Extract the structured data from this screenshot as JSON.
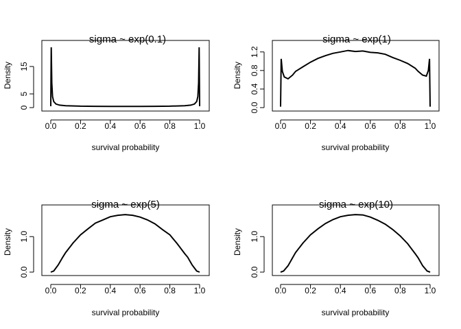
{
  "chart_data": [
    {
      "type": "line",
      "title": "sigma ~ exp(0.1)",
      "xlabel": "survival probability",
      "ylabel": "Density",
      "xlim": [
        0,
        1
      ],
      "ylim": [
        0,
        22
      ],
      "xticks": [
        "0.0",
        "0.2",
        "0.4",
        "0.6",
        "0.8",
        "1.0"
      ],
      "yticks": [
        "0",
        "5",
        "15"
      ],
      "ytick_values": [
        0,
        5,
        15
      ],
      "series": [
        {
          "x": [
            0.0,
            0.003,
            0.007,
            0.012,
            0.02,
            0.035,
            0.06,
            0.1,
            0.2,
            0.3,
            0.4,
            0.5,
            0.6,
            0.7,
            0.8,
            0.9,
            0.94,
            0.965,
            0.98,
            0.988,
            0.993,
            0.997,
            1.0
          ],
          "y": [
            0.5,
            22,
            9,
            4,
            2.2,
            1.3,
            0.9,
            0.7,
            0.52,
            0.47,
            0.45,
            0.44,
            0.45,
            0.47,
            0.52,
            0.7,
            0.9,
            1.3,
            2.2,
            4,
            9,
            22,
            0.5
          ]
        }
      ]
    },
    {
      "type": "line",
      "title": "sigma ~ exp(1)",
      "xlabel": "survival probability",
      "ylabel": "Density",
      "xlim": [
        0,
        1
      ],
      "ylim": [
        0,
        1.3
      ],
      "xticks": [
        "0.0",
        "0.2",
        "0.4",
        "0.6",
        "0.8",
        "1.0"
      ],
      "yticks": [
        "0.0",
        "0.4",
        "0.8",
        "1.2"
      ],
      "ytick_values": [
        0,
        0.4,
        0.8,
        1.2
      ],
      "series": [
        {
          "x": [
            0.0,
            0.004,
            0.012,
            0.025,
            0.05,
            0.08,
            0.1,
            0.15,
            0.2,
            0.25,
            0.3,
            0.35,
            0.4,
            0.45,
            0.5,
            0.55,
            0.6,
            0.65,
            0.7,
            0.75,
            0.8,
            0.85,
            0.9,
            0.92,
            0.95,
            0.975,
            0.988,
            0.996,
            1.0
          ],
          "y": [
            0.02,
            1.05,
            0.78,
            0.66,
            0.62,
            0.7,
            0.78,
            0.88,
            0.98,
            1.06,
            1.12,
            1.17,
            1.2,
            1.23,
            1.21,
            1.22,
            1.19,
            1.18,
            1.15,
            1.08,
            1.02,
            0.95,
            0.85,
            0.78,
            0.7,
            0.68,
            0.8,
            1.05,
            0.02
          ]
        }
      ]
    },
    {
      "type": "line",
      "title": "sigma ~ exp(5)",
      "xlabel": "survival probability",
      "ylabel": "Density",
      "xlim": [
        0,
        1
      ],
      "ylim": [
        0,
        1.68
      ],
      "xticks": [
        "0.0",
        "0.2",
        "0.4",
        "0.6",
        "0.8",
        "1.0"
      ],
      "yticks": [
        "0.0",
        "1.0"
      ],
      "ytick_values": [
        0,
        1.0
      ],
      "series": [
        {
          "x": [
            0.0,
            0.02,
            0.05,
            0.08,
            0.1,
            0.15,
            0.2,
            0.25,
            0.3,
            0.35,
            0.4,
            0.45,
            0.5,
            0.55,
            0.6,
            0.65,
            0.7,
            0.75,
            0.8,
            0.85,
            0.9,
            0.92,
            0.95,
            0.98,
            1.0
          ],
          "y": [
            0.0,
            0.03,
            0.2,
            0.42,
            0.55,
            0.82,
            1.05,
            1.22,
            1.38,
            1.47,
            1.56,
            1.6,
            1.62,
            1.6,
            1.55,
            1.47,
            1.36,
            1.2,
            1.05,
            0.8,
            0.52,
            0.42,
            0.2,
            0.03,
            0.0
          ]
        }
      ]
    },
    {
      "type": "line",
      "title": "sigma ~ exp(10)",
      "xlabel": "survival probability",
      "ylabel": "Density",
      "xlim": [
        0,
        1
      ],
      "ylim": [
        0,
        1.68
      ],
      "xticks": [
        "0.0",
        "0.2",
        "0.4",
        "0.6",
        "0.8",
        "1.0"
      ],
      "yticks": [
        "0.0",
        "1.0"
      ],
      "ytick_values": [
        0,
        1.0
      ],
      "series": [
        {
          "x": [
            0.0,
            0.02,
            0.05,
            0.08,
            0.1,
            0.15,
            0.2,
            0.25,
            0.3,
            0.35,
            0.4,
            0.45,
            0.5,
            0.55,
            0.6,
            0.65,
            0.7,
            0.75,
            0.8,
            0.85,
            0.9,
            0.92,
            0.95,
            0.98,
            1.0
          ],
          "y": [
            0.0,
            0.03,
            0.18,
            0.4,
            0.55,
            0.82,
            1.05,
            1.22,
            1.37,
            1.48,
            1.56,
            1.6,
            1.62,
            1.61,
            1.55,
            1.46,
            1.35,
            1.2,
            1.02,
            0.8,
            0.52,
            0.4,
            0.18,
            0.03,
            0.0
          ]
        }
      ]
    }
  ]
}
